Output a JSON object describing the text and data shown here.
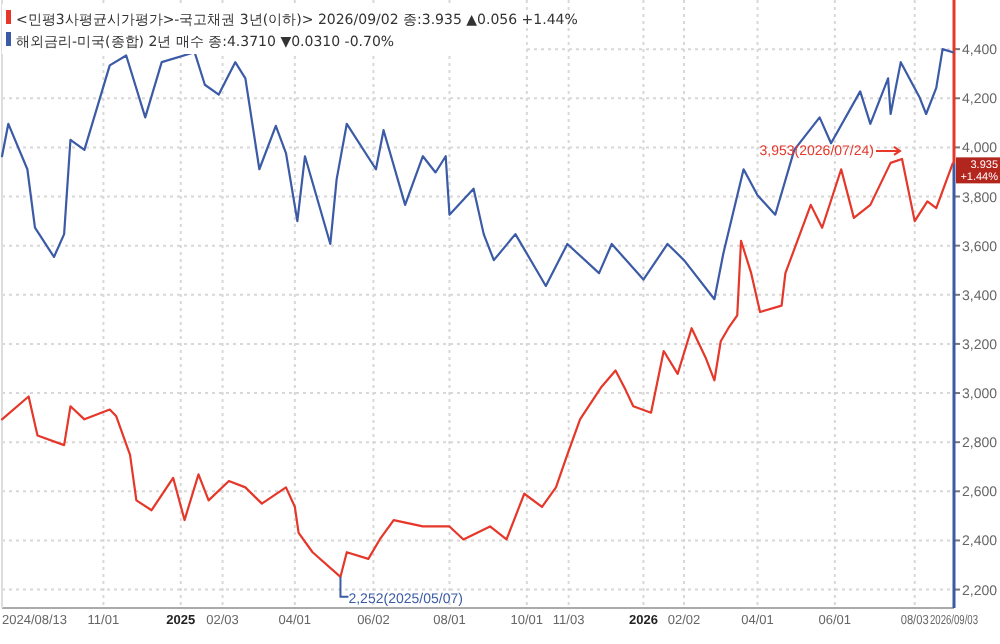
{
  "chart_data": {
    "type": "line",
    "xlim": [
      "2024-08-13",
      "2026-09-03"
    ],
    "ylim": [
      2125,
      4600
    ],
    "xticks": [
      {
        "value": "2024-08-13",
        "label": "2024/08/13"
      },
      {
        "value": "2024-11-01",
        "label": "11/01"
      },
      {
        "value": "2025-01-01",
        "label": "2025"
      },
      {
        "value": "2025-02-03",
        "label": "02/03"
      },
      {
        "value": "2025-04-01",
        "label": "04/01"
      },
      {
        "value": "2025-06-02",
        "label": "06/02"
      },
      {
        "value": "2025-08-01",
        "label": "08/01"
      },
      {
        "value": "2025-10-01",
        "label": "10/01"
      },
      {
        "value": "2025-11-03",
        "label": "11/03"
      },
      {
        "value": "2026-01-01",
        "label": "2026"
      },
      {
        "value": "2026-02-02",
        "label": "02/02"
      },
      {
        "value": "2026-04-01",
        "label": "04/01"
      },
      {
        "value": "2026-06-01",
        "label": "06/01"
      },
      {
        "value": "2026-08-03",
        "label": "08/03"
      },
      {
        "value": "2026-09-03",
        "label": "2026/09/03"
      }
    ],
    "yticks": [
      {
        "value": 2200,
        "label": "2,200"
      },
      {
        "value": 2400,
        "label": "2,400"
      },
      {
        "value": 2600,
        "label": "2,600"
      },
      {
        "value": 2800,
        "label": "2,800"
      },
      {
        "value": 3000,
        "label": "3,000"
      },
      {
        "value": 3200,
        "label": "3,200"
      },
      {
        "value": 3400,
        "label": "3,400"
      },
      {
        "value": 3600,
        "label": "3,600"
      },
      {
        "value": 3800,
        "label": "3,800"
      },
      {
        "value": 4000,
        "label": "4,000"
      },
      {
        "value": 4200,
        "label": "4,200"
      },
      {
        "value": 4400,
        "label": "4,400"
      }
    ],
    "grid": true,
    "legend": "top left",
    "marker": "none",
    "line_style": "solid",
    "series": [
      {
        "name": "<민평3사평균시가평가>-국고채권 3년(이하)> 2026/09/02 종:3.935 ▲0.056 +1.44%",
        "color": "#e5372a",
        "x": [
          "2024-08-13",
          "2024-09-03",
          "2024-09-10",
          "2024-10-01",
          "2024-10-06",
          "2024-10-17",
          "2024-11-06",
          "2024-11-11",
          "2024-11-22",
          "2024-11-27",
          "2024-12-09",
          "2024-12-26",
          "2025-01-04",
          "2025-01-15",
          "2025-01-23",
          "2025-02-08",
          "2025-02-21",
          "2025-03-06",
          "2025-03-25",
          "2025-04-01",
          "2025-04-04",
          "2025-04-15",
          "2025-05-07",
          "2025-05-12",
          "2025-05-29",
          "2025-06-07",
          "2025-06-18",
          "2025-07-11",
          "2025-08-01",
          "2025-08-12",
          "2025-09-02",
          "2025-09-15",
          "2025-09-29",
          "2025-10-13",
          "2025-10-24",
          "2025-11-01",
          "2025-11-12",
          "2025-11-29",
          "2025-12-10",
          "2025-12-18",
          "2025-12-24",
          "2026-01-07",
          "2026-01-17",
          "2026-01-28",
          "2026-02-08",
          "2026-02-19",
          "2026-02-26",
          "2026-03-03",
          "2026-03-09",
          "2026-03-16",
          "2026-03-19",
          "2026-03-27",
          "2026-04-03",
          "2026-04-20",
          "2026-04-23",
          "2026-05-13",
          "2026-05-22",
          "2026-06-06",
          "2026-06-16",
          "2026-06-29",
          "2026-07-15",
          "2026-07-24",
          "2026-08-03",
          "2026-08-13",
          "2026-08-20",
          "2026-09-02"
        ],
        "values": [
          2893,
          2986,
          2827,
          2788,
          2946,
          2893,
          2933,
          2907,
          2748,
          2563,
          2523,
          2655,
          2483,
          2669,
          2563,
          2642,
          2616,
          2550,
          2616,
          2537,
          2431,
          2352,
          2252,
          2352,
          2325,
          2404,
          2483,
          2457,
          2457,
          2404,
          2457,
          2404,
          2590,
          2537,
          2616,
          2735,
          2893,
          3026,
          3092,
          3012,
          2946,
          2920,
          3171,
          3078,
          3264,
          3145,
          3052,
          3211,
          3264,
          3316,
          3620,
          3488,
          3330,
          3356,
          3488,
          3766,
          3673,
          3911,
          3713,
          3766,
          3937,
          3953,
          3700,
          3780,
          3753,
          3935
        ]
      },
      {
        "name": "해외금리-미국(종합) 2년 매수 종:4.3710 ▼0.0310 -0.70%",
        "color": "#3b5ba6",
        "x": [
          "2024-08-13",
          "2024-08-18",
          "2024-09-02",
          "2024-09-08",
          "2024-09-23",
          "2024-10-01",
          "2024-10-06",
          "2024-10-17",
          "2024-11-06",
          "2024-11-19",
          "2024-12-04",
          "2024-12-17",
          "2025-01-12",
          "2025-01-20",
          "2025-01-31",
          "2025-02-13",
          "2025-02-21",
          "2025-03-04",
          "2025-03-17",
          "2025-03-25",
          "2025-04-03",
          "2025-04-09",
          "2025-04-29",
          "2025-05-04",
          "2025-05-12",
          "2025-06-04",
          "2025-06-10",
          "2025-06-27",
          "2025-07-11",
          "2025-07-21",
          "2025-07-29",
          "2025-08-01",
          "2025-08-20",
          "2025-08-28",
          "2025-09-05",
          "2025-09-22",
          "2025-10-16",
          "2025-11-02",
          "2025-11-27",
          "2025-12-07",
          "2026-01-01",
          "2026-01-20",
          "2026-02-02",
          "2026-02-26",
          "2026-03-05",
          "2026-03-21",
          "2026-04-01",
          "2026-04-15",
          "2026-04-30",
          "2026-05-20",
          "2026-05-29",
          "2026-06-21",
          "2026-06-29",
          "2026-07-13",
          "2026-07-15",
          "2026-07-23",
          "2026-08-07",
          "2026-08-12",
          "2026-08-20",
          "2026-08-25",
          "2026-09-02"
        ],
        "values": [
          3964,
          4096,
          3911,
          3673,
          3554,
          3647,
          4031,
          3990,
          4334,
          4374,
          4122,
          4347,
          4387,
          4255,
          4215,
          4347,
          4281,
          3911,
          4088,
          3977,
          3700,
          3964,
          3607,
          3871,
          4096,
          3911,
          4070,
          3766,
          3964,
          3898,
          3964,
          3726,
          3832,
          3647,
          3541,
          3647,
          3436,
          3607,
          3488,
          3607,
          3462,
          3607,
          3541,
          3382,
          3567,
          3911,
          3805,
          3726,
          3990,
          4122,
          4017,
          4228,
          4096,
          4281,
          4136,
          4347,
          4202,
          4136,
          4242,
          4400,
          4387
        ]
      }
    ],
    "annotations": [
      {
        "text": "3,953(2026/07/24)",
        "x": "2026-07-24",
        "y": 3953
      },
      {
        "text": "2,252(2025/05/07)",
        "x": "2025-05-07",
        "y": 2252
      },
      {
        "text": "3.935 +1.44%",
        "x": "2026-09-03",
        "y": 3935
      }
    ]
  }
}
